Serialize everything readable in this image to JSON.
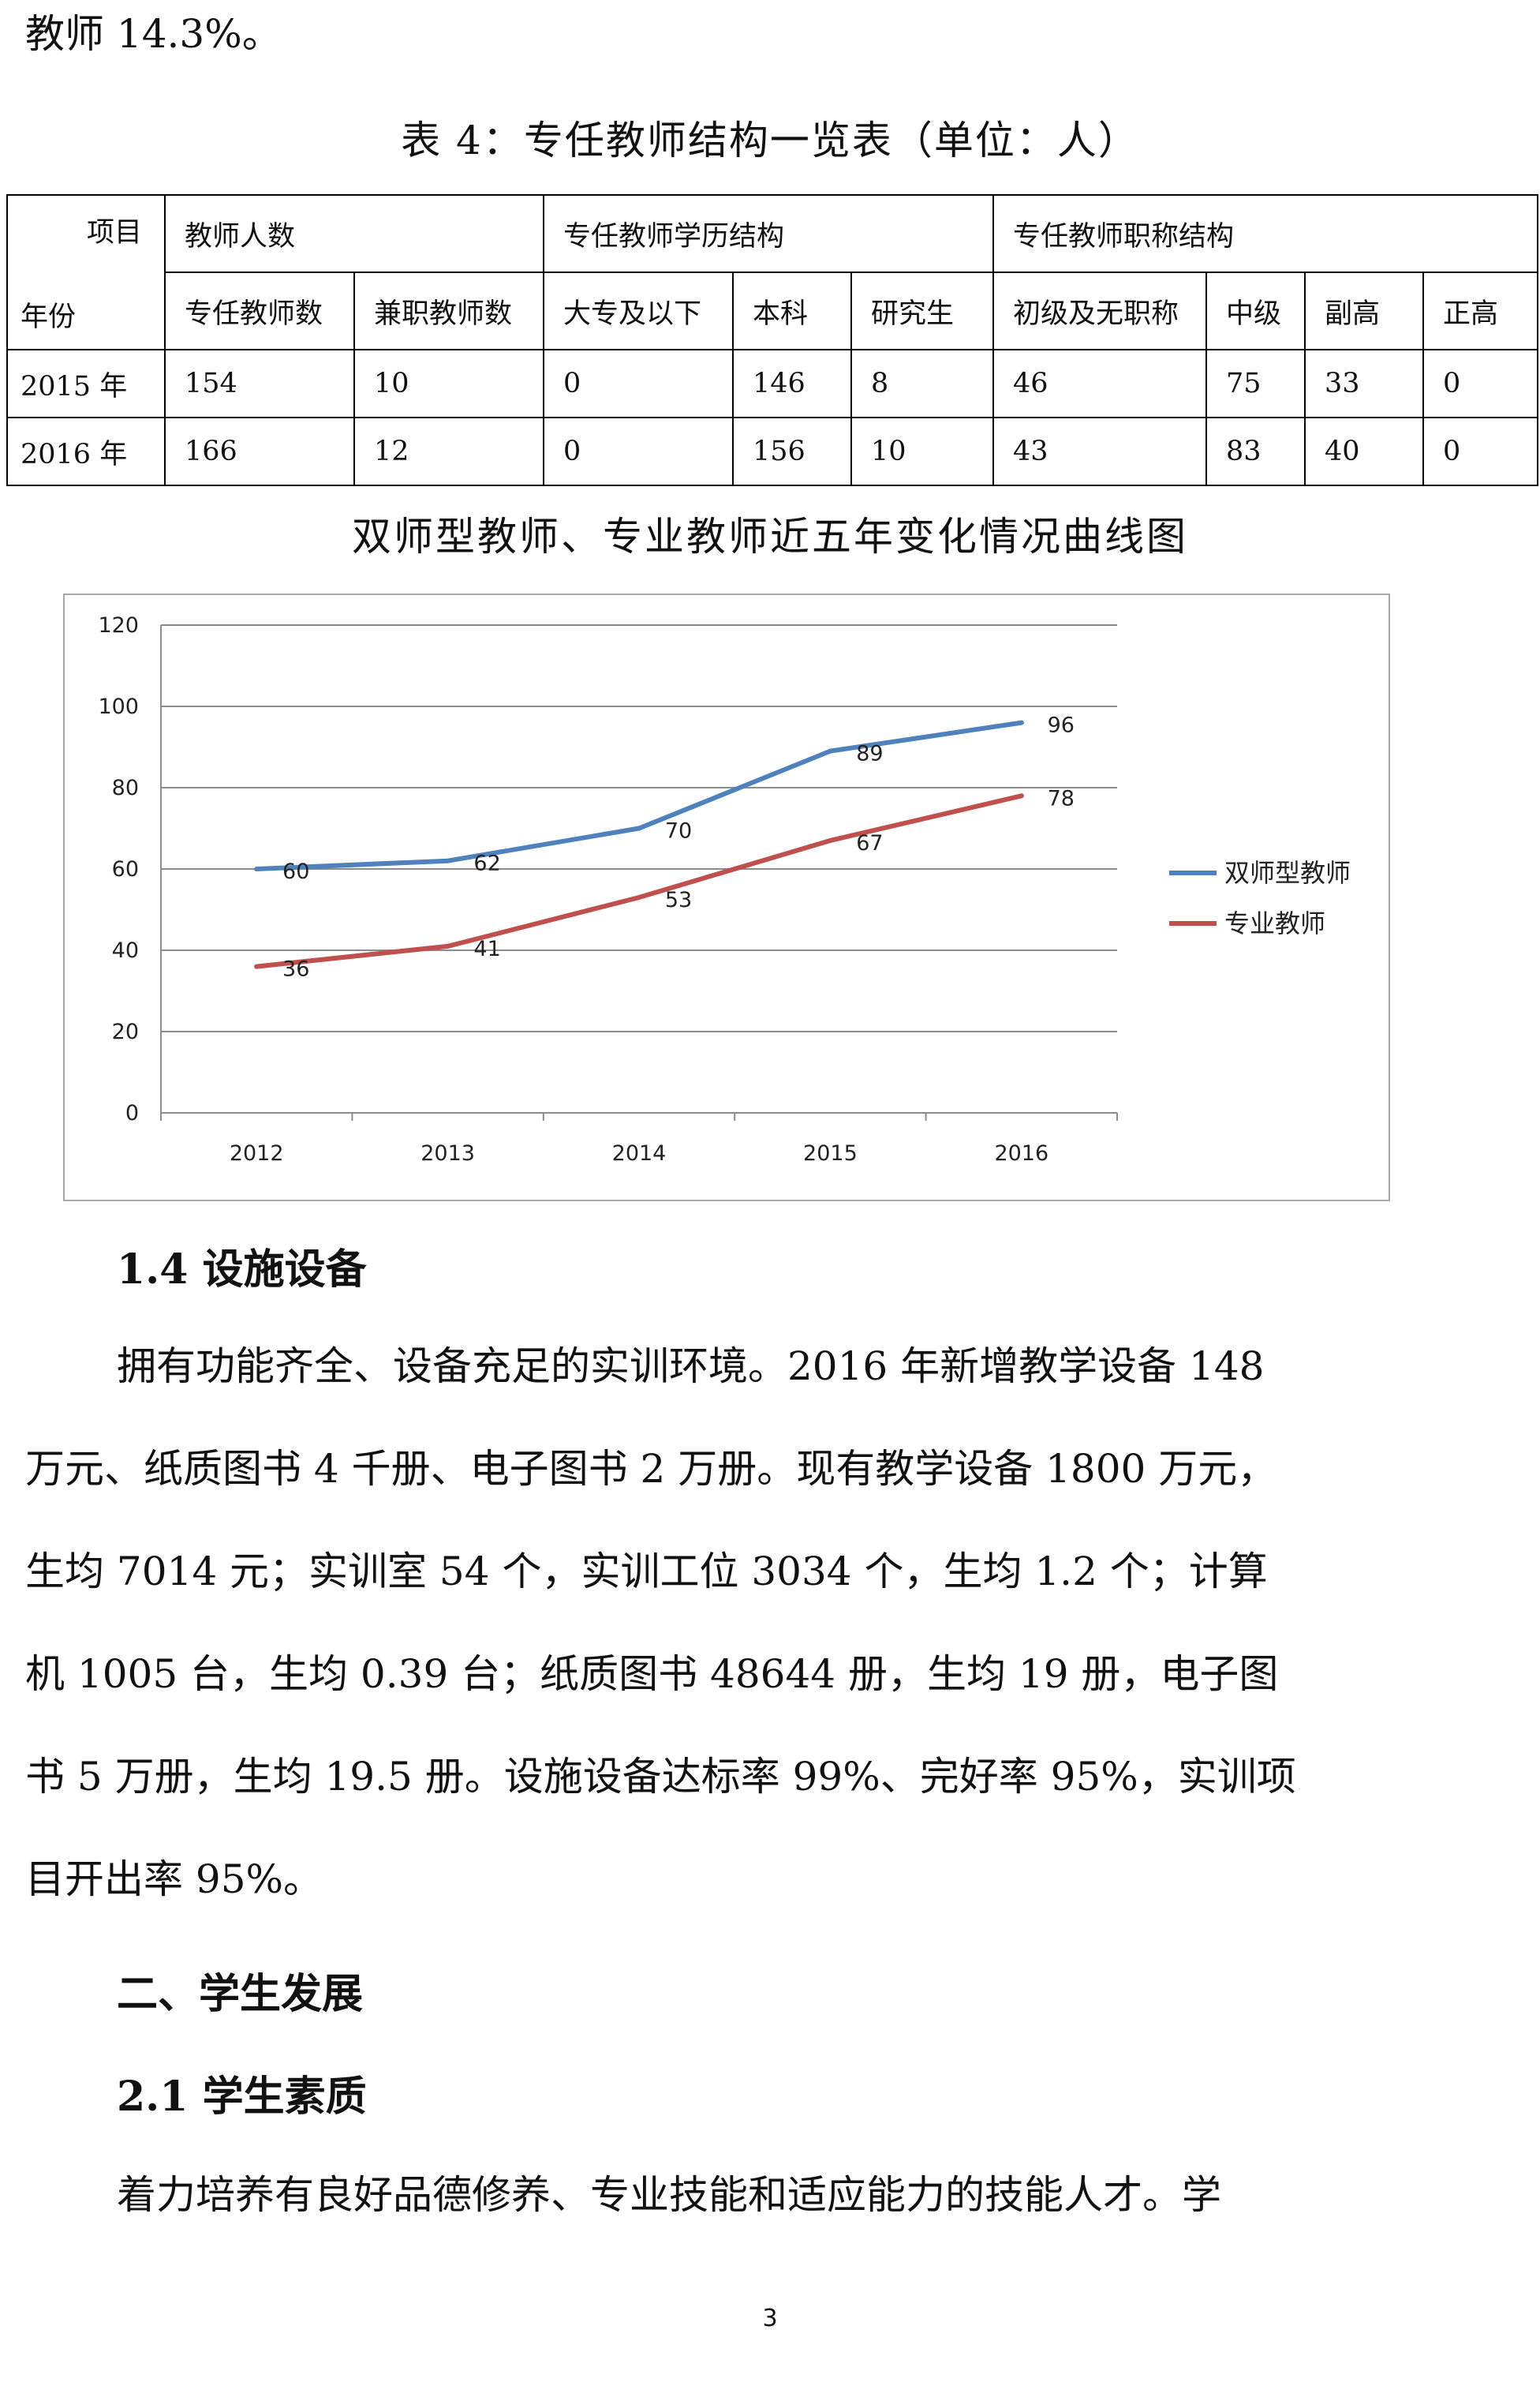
{
  "top_line": "教师 14.3%。",
  "table4": {
    "title": "表 4：专任教师结构一览表（单位：人）",
    "corner_top": "项目",
    "corner_bottom": "年份",
    "group_headers": [
      "教师人数",
      "专任教师学历结构",
      "专任教师职称结构"
    ],
    "sub_headers": [
      "专任教师数",
      "兼职教师数",
      "大专及以下",
      "本科",
      "研究生",
      "初级及无职称",
      "中级",
      "副高",
      "正高"
    ],
    "rows": [
      {
        "year": "2015 年",
        "cells": [
          "154",
          "10",
          "0",
          "146",
          "8",
          "46",
          "75",
          "33",
          "0"
        ]
      },
      {
        "year": "2016 年",
        "cells": [
          "166",
          "12",
          "0",
          "156",
          "10",
          "43",
          "83",
          "40",
          "0"
        ]
      }
    ]
  },
  "chart_title": "双师型教师、专业教师近五年变化情况曲线图",
  "chart_data": {
    "type": "line",
    "title": "",
    "x": [
      "2012",
      "2013",
      "2014",
      "2015",
      "2016"
    ],
    "ylim": [
      0,
      120
    ],
    "yticks": [
      "0",
      "20",
      "40",
      "60",
      "80",
      "100",
      "120"
    ],
    "grid": true,
    "legend_position": "right",
    "series": [
      {
        "name": "双师型教师",
        "color": "#4f81bd",
        "values": [
          60,
          62,
          70,
          89,
          96
        ],
        "labels": [
          "60",
          "62",
          "70",
          "89",
          "96"
        ]
      },
      {
        "name": "专业教师",
        "color": "#c0504d",
        "values": [
          36,
          41,
          53,
          67,
          78
        ],
        "labels": [
          "36",
          "41",
          "53",
          "67",
          "78"
        ]
      }
    ]
  },
  "section_1_4": {
    "heading": "1.4 设施设备",
    "lines": [
      "拥有功能齐全、设备充足的实训环境。2016 年新增教学设备 148",
      "万元、纸质图书 4 千册、电子图书 2 万册。现有教学设备 1800 万元，",
      "生均 7014 元；实训室 54 个，实训工位 3034 个，生均 1.2 个；计算",
      "机 1005 台，生均 0.39 台；纸质图书 48644 册，生均 19 册，电子图",
      "书 5 万册，生均 19.5 册。设施设备达标率 99%、完好率 95%，实训项",
      "目开出率 95%。"
    ]
  },
  "section_2": {
    "heading": "二、学生发展"
  },
  "section_2_1": {
    "heading": "2.1 学生素质",
    "lines": [
      "着力培养有良好品德修养、专业技能和适应能力的技能人才。学"
    ]
  },
  "page_number": "3"
}
